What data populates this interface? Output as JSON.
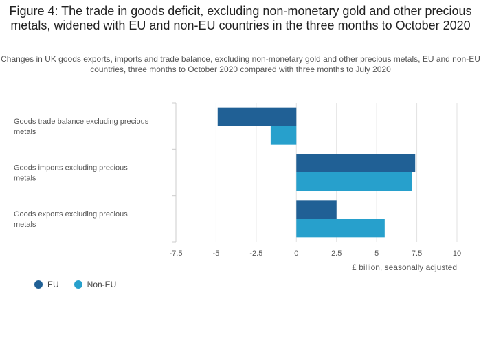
{
  "title": "Figure 4: The trade in goods deficit, excluding non-monetary gold and other precious metals, widened with EU and non-EU countries in the three months to October 2020",
  "subtitle": "Changes in UK goods exports, imports and trade balance, excluding non-monetary gold and other precious metals, EU and non-EU countries, three months to October 2020 compared with three months to July 2020",
  "colors": {
    "eu": "#206095",
    "non_eu": "#27a0cc",
    "grid": "#e2e2e2",
    "axis": "#cccccc",
    "text": "#555555"
  },
  "chart_data": {
    "type": "bar",
    "orientation": "horizontal",
    "categories": [
      "Goods trade balance excluding precious metals",
      "Goods imports excluding precious metals",
      "Goods exports excluding precious metals"
    ],
    "series": [
      {
        "name": "EU",
        "values": [
          -4.9,
          7.4,
          2.5
        ]
      },
      {
        "name": "Non-EU",
        "values": [
          -1.6,
          7.2,
          5.5
        ]
      }
    ],
    "xlim": [
      -7.5,
      10
    ],
    "xticks": [
      -7.5,
      -5,
      -2.5,
      0,
      2.5,
      5,
      7.5,
      10
    ],
    "xtick_labels": [
      "-7.5",
      "-5",
      "-2.5",
      "0",
      "2.5",
      "5",
      "7.5",
      "10"
    ],
    "xlabel": "£ billion, seasonally adjusted",
    "ylabel": "",
    "legend_position": "bottom-left"
  }
}
